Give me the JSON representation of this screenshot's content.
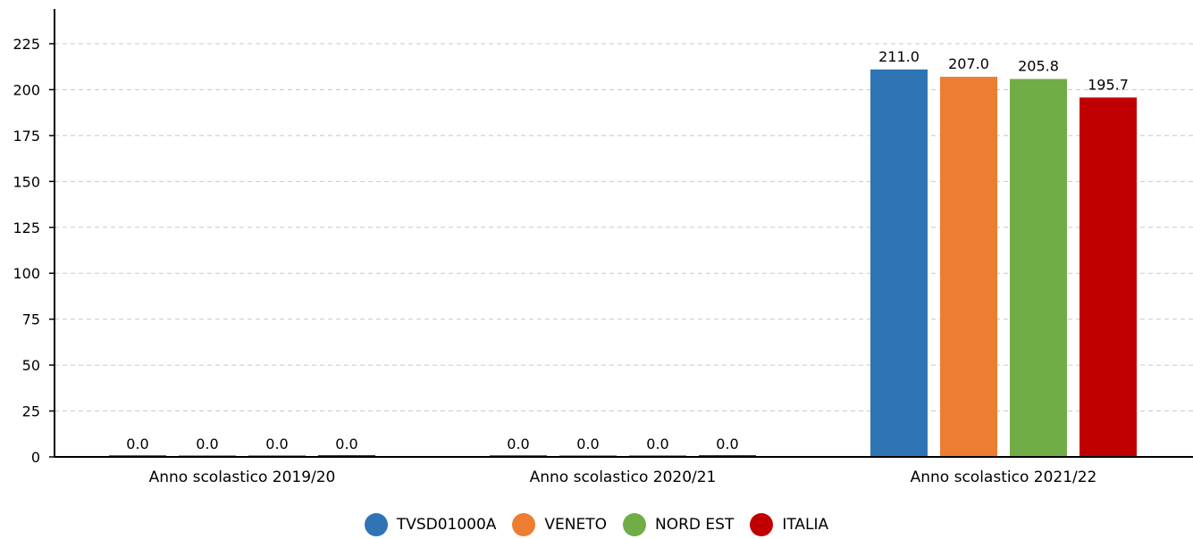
{
  "chart_data": {
    "type": "bar",
    "title": "",
    "xlabel": "",
    "ylabel": "",
    "ylim": [
      0,
      235
    ],
    "yticks": [
      0,
      25,
      50,
      75,
      100,
      125,
      150,
      175,
      200,
      225
    ],
    "grid": true,
    "legend_position": "bottom",
    "categories": [
      "Anno scolastico 2019/20",
      "Anno scolastico 2020/21",
      "Anno scolastico 2021/22"
    ],
    "series": [
      {
        "name": "TVSD01000A",
        "color": "#2f75b5",
        "values": [
          0.0,
          0.0,
          211.0
        ],
        "labels": [
          "0.0",
          "0.0",
          "211.0"
        ]
      },
      {
        "name": "VENETO",
        "color": "#ed7d31",
        "values": [
          0.0,
          0.0,
          207.0
        ],
        "labels": [
          "0.0",
          "0.0",
          "207.0"
        ]
      },
      {
        "name": "NORD EST",
        "color": "#70ad47",
        "values": [
          0.0,
          0.0,
          205.8
        ],
        "labels": [
          "0.0",
          "0.0",
          "205.8"
        ]
      },
      {
        "name": "ITALIA",
        "color": "#c00000",
        "values": [
          0.0,
          0.0,
          195.7
        ],
        "labels": [
          "0.0",
          "0.0",
          "195.7"
        ]
      }
    ]
  }
}
